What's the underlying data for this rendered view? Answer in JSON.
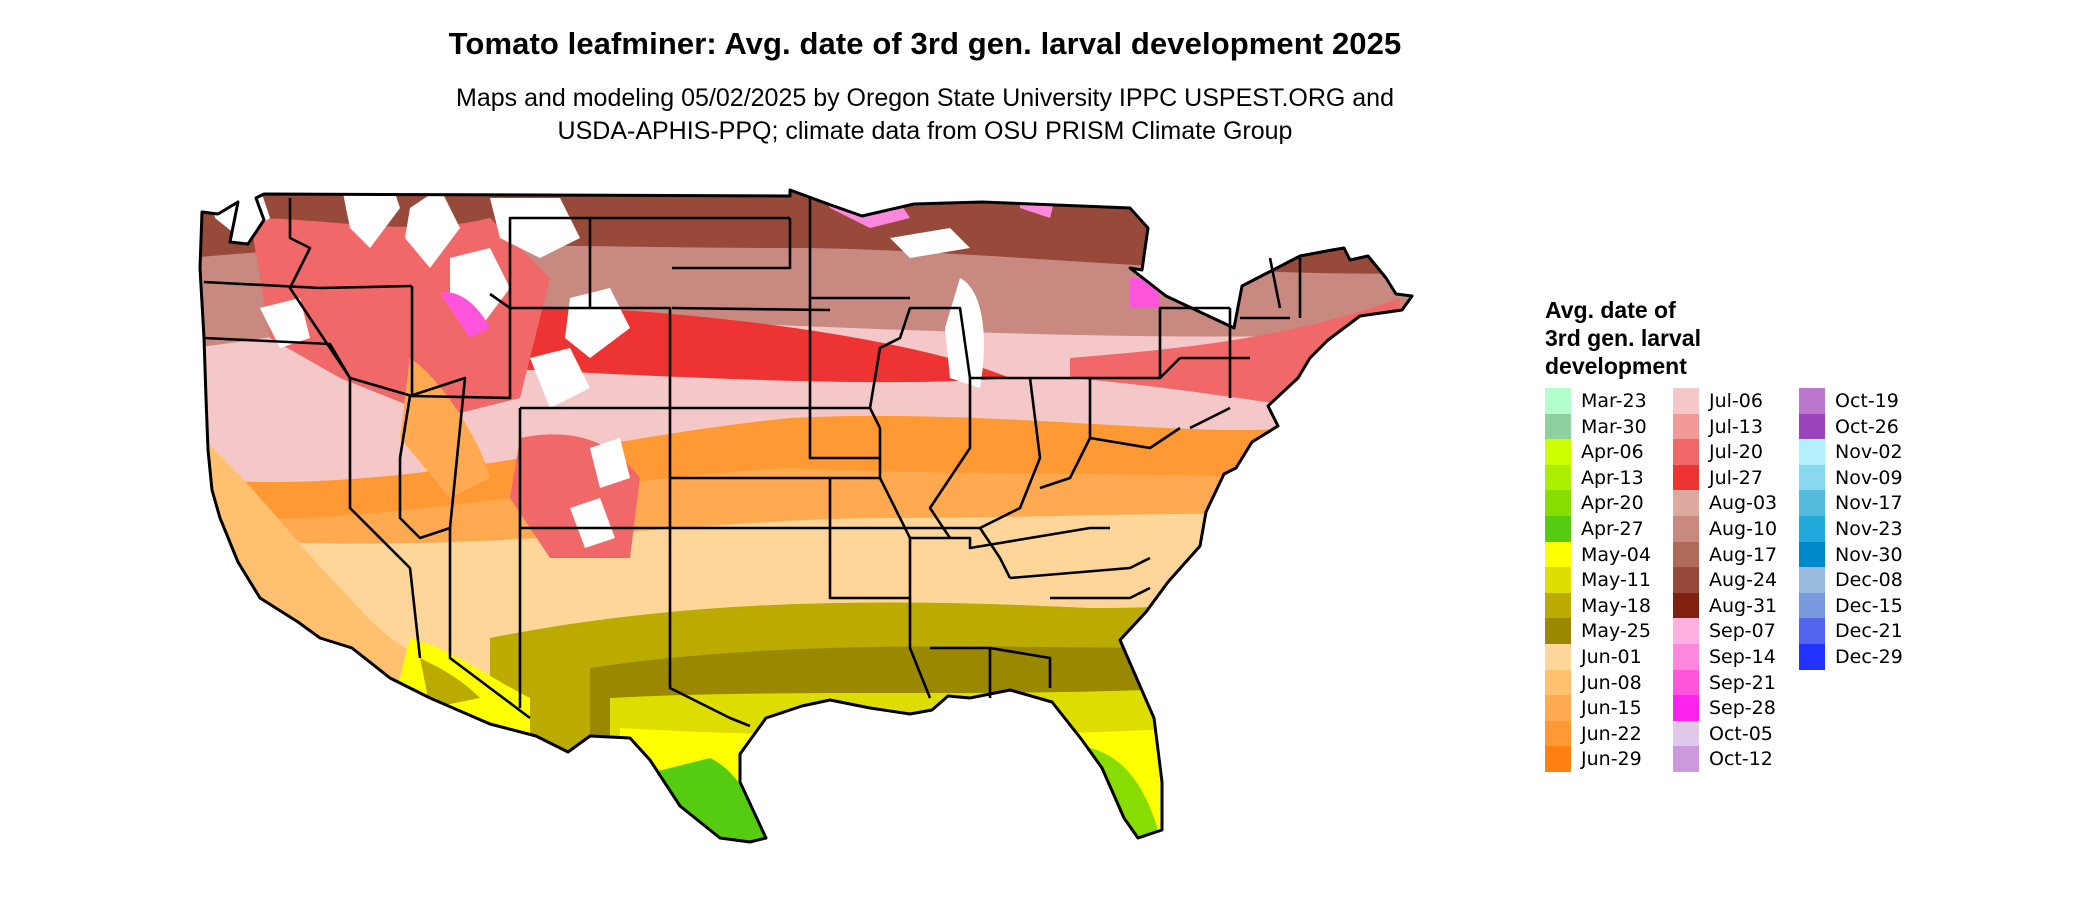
{
  "title": "Tomato leafminer: Avg. date of 3rd gen. larval development 2025",
  "subtitle_line1": "Maps and modeling 05/02/2025 by Oregon State University IPPC USPEST.ORG and",
  "subtitle_line2": "USDA-APHIS-PPQ; climate data from OSU PRISM Climate Group",
  "legend": {
    "title_lines": [
      "Avg. date of",
      "3rd gen. larval",
      "development"
    ],
    "columns": [
      [
        {
          "label": "Mar-23",
          "color": "#b3ffcc"
        },
        {
          "label": "Mar-30",
          "color": "#8fd19e"
        },
        {
          "label": "Apr-06",
          "color": "#ccff00"
        },
        {
          "label": "Apr-13",
          "color": "#aaee00"
        },
        {
          "label": "Apr-20",
          "color": "#88dd00"
        },
        {
          "label": "Apr-27",
          "color": "#55cc11"
        },
        {
          "label": "May-04",
          "color": "#ffff00"
        },
        {
          "label": "May-11",
          "color": "#dddd00"
        },
        {
          "label": "May-18",
          "color": "#bbaa00"
        },
        {
          "label": "May-25",
          "color": "#998800"
        },
        {
          "label": "Jun-01",
          "color": "#ffd699"
        },
        {
          "label": "Jun-08",
          "color": "#ffc070"
        },
        {
          "label": "Jun-15",
          "color": "#ffaa50"
        },
        {
          "label": "Jun-22",
          "color": "#ff9933"
        },
        {
          "label": "Jun-29",
          "color": "#ff8010"
        }
      ],
      [
        {
          "label": "Jul-06",
          "color": "#f4c8c8"
        },
        {
          "label": "Jul-13",
          "color": "#f29a9a"
        },
        {
          "label": "Jul-20",
          "color": "#f06868"
        },
        {
          "label": "Jul-27",
          "color": "#ee3333"
        },
        {
          "label": "Aug-03",
          "color": "#ddaaa0"
        },
        {
          "label": "Aug-10",
          "color": "#c88a80"
        },
        {
          "label": "Aug-17",
          "color": "#b06a5a"
        },
        {
          "label": "Aug-24",
          "color": "#984a3a"
        },
        {
          "label": "Aug-31",
          "color": "#80200f"
        },
        {
          "label": "Sep-07",
          "color": "#ffb0e0"
        },
        {
          "label": "Sep-14",
          "color": "#ff88dd"
        },
        {
          "label": "Sep-21",
          "color": "#ff55dd"
        },
        {
          "label": "Sep-28",
          "color": "#ff22ee"
        },
        {
          "label": "Oct-05",
          "color": "#e0c8e8"
        },
        {
          "label": "Oct-12",
          "color": "#cc99dd"
        }
      ],
      [
        {
          "label": "Oct-19",
          "color": "#bb77cc"
        },
        {
          "label": "Oct-26",
          "color": "#9944bb"
        },
        {
          "label": "Nov-02",
          "color": "#b3f0ff"
        },
        {
          "label": "Nov-09",
          "color": "#88d8ee"
        },
        {
          "label": "Nov-17",
          "color": "#55bbdd"
        },
        {
          "label": "Nov-23",
          "color": "#22aadd"
        },
        {
          "label": "Nov-30",
          "color": "#0088cc"
        },
        {
          "label": "Dec-08",
          "color": "#99bbdd"
        },
        {
          "label": "Dec-15",
          "color": "#7799dd"
        },
        {
          "label": "Dec-21",
          "color": "#5566ee"
        },
        {
          "label": "Dec-29",
          "color": "#2233ff"
        }
      ]
    ]
  }
}
